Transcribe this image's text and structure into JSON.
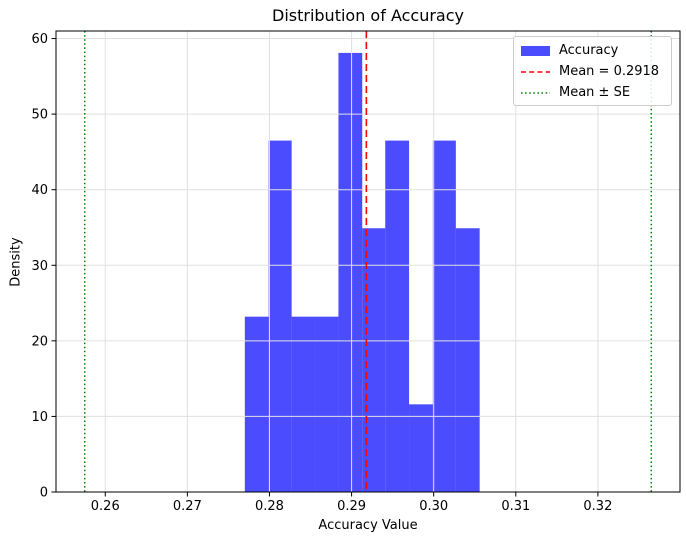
{
  "chart_data": {
    "type": "bar",
    "subtype": "histogram-density",
    "title": "Distribution of Accuracy",
    "xlabel": "Accuracy Value",
    "ylabel": "Density",
    "xlim": [
      0.254,
      0.33
    ],
    "ylim": [
      0,
      61
    ],
    "grid": true,
    "grid_color": "#e0e0e0",
    "bar_color": "rgba(0,0,255,0.7)",
    "bin_edges": [
      0.277,
      0.2799,
      0.2827,
      0.2856,
      0.2884,
      0.2913,
      0.2941,
      0.297,
      0.2999,
      0.3027,
      0.3056
    ],
    "densities": [
      23.2,
      46.5,
      23.2,
      23.2,
      58.1,
      34.9,
      46.5,
      11.6,
      46.5,
      34.9
    ],
    "xticks": {
      "values": [
        0.26,
        0.27,
        0.28,
        0.29,
        0.3,
        0.31,
        0.32
      ],
      "labels": [
        "0.26",
        "0.27",
        "0.28",
        "0.29",
        "0.30",
        "0.31",
        "0.32"
      ]
    },
    "yticks": {
      "values": [
        0,
        10,
        20,
        30,
        40,
        50,
        60
      ],
      "labels": [
        "0",
        "10",
        "20",
        "30",
        "40",
        "50",
        "60"
      ]
    },
    "mean_line": {
      "value": 0.2918,
      "color": "#ff0000",
      "style": "dashed"
    },
    "se_lines": {
      "values": [
        0.2575,
        0.3265
      ],
      "color": "#008000",
      "style": "dotted"
    },
    "legend": {
      "position": "upper right",
      "items": [
        {
          "label": "Accuracy",
          "marker": "patch",
          "color": "rgba(0,0,255,0.7)"
        },
        {
          "label": "Mean = 0.2918",
          "marker": "dashed-line",
          "color": "#ff0000"
        },
        {
          "label": "Mean ± SE",
          "marker": "dotted-line",
          "color": "#008000"
        }
      ]
    }
  }
}
